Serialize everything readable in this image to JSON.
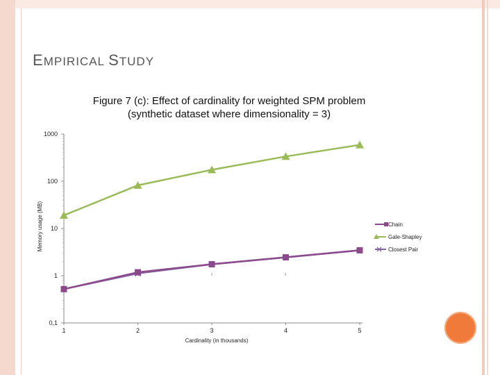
{
  "slide": {
    "title_first": "E",
    "title_rest_1": "MPIRICAL ",
    "title_s": "S",
    "title_rest_2": "TUDY"
  },
  "colors": {
    "chain": "#8b4a8b",
    "gale_shapley": "#9bbb59",
    "closest_pair": "#8064a2",
    "accent": "#f07a3a"
  },
  "chart_data": {
    "type": "line",
    "title": "Figure 7 (c): Effect of cardinality for weighted SPM problem",
    "subtitle": "(synthetic dataset where dimensionality = 3)",
    "xlabel": "Cardinality (in thousands)",
    "ylabel": "Memory usage (MB)",
    "yscale": "log",
    "ylim": [
      0.1,
      1000
    ],
    "x": [
      1,
      2,
      3,
      4,
      5
    ],
    "x_tick_labels": [
      "1",
      "2",
      "3",
      "4",
      "5"
    ],
    "y_tick_labels": [
      "0,1",
      "1",
      "10",
      "100",
      "1000"
    ],
    "y_ticks": [
      0.1,
      1,
      10,
      100,
      1000
    ],
    "series": [
      {
        "name": "Chain",
        "marker": "square",
        "values": [
          0.52,
          1.18,
          1.75,
          2.45,
          3.45
        ]
      },
      {
        "name": "Gale-Shapley",
        "marker": "triangle",
        "values": [
          19,
          82,
          175,
          335,
          590
        ]
      },
      {
        "name": "Closest Pair",
        "marker": "x",
        "values": [
          0.52,
          1.12,
          1.75,
          2.45,
          3.45
        ]
      }
    ],
    "legend_position": "right"
  }
}
